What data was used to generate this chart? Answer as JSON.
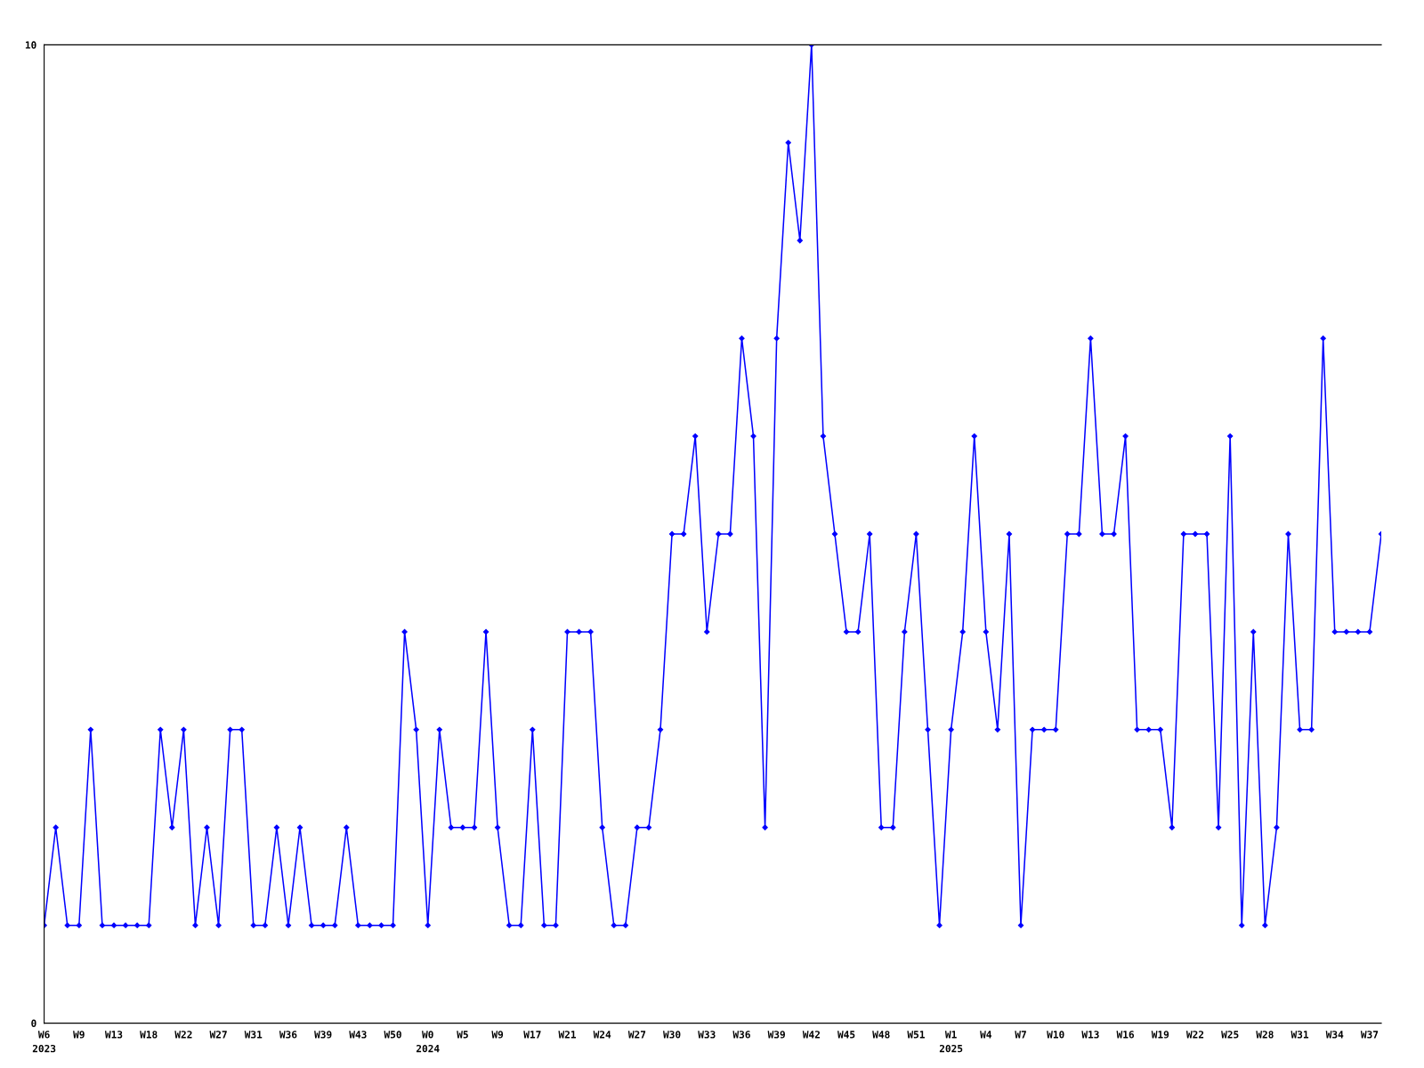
{
  "chart_data": {
    "type": "line",
    "categories": [
      "W6\n2023",
      null,
      null,
      "W9",
      null,
      null,
      "W13",
      null,
      null,
      "W18",
      null,
      null,
      "W22",
      null,
      null,
      "W27",
      null,
      null,
      "W31",
      null,
      null,
      "W36",
      null,
      null,
      "W39",
      null,
      null,
      "W43",
      null,
      null,
      "W50",
      null,
      null,
      "W0\n2024",
      null,
      null,
      "W5",
      null,
      null,
      "W9",
      null,
      null,
      "W17",
      null,
      null,
      "W21",
      null,
      null,
      "W24",
      null,
      null,
      "W27",
      null,
      null,
      "W30",
      null,
      null,
      "W33",
      null,
      null,
      "W36",
      null,
      null,
      "W39",
      null,
      null,
      "W42",
      null,
      null,
      "W45",
      null,
      null,
      "W48",
      null,
      null,
      "W51",
      null,
      null,
      "W1\n2025",
      null,
      null,
      "W4",
      null,
      null,
      "W7",
      null,
      null,
      "W10",
      null,
      null,
      "W13",
      null,
      null,
      "W16",
      null,
      null,
      "W19",
      null,
      null,
      "W22",
      null,
      null,
      "W25",
      null,
      null,
      "W28",
      null,
      null,
      "W31",
      null,
      null,
      "W34",
      null,
      null,
      "W37",
      null
    ],
    "values": [
      1,
      2,
      1,
      1,
      3,
      1,
      1,
      1,
      1,
      1,
      3,
      2,
      3,
      1,
      2,
      1,
      3,
      3,
      1,
      1,
      2,
      1,
      2,
      1,
      1,
      1,
      2,
      1,
      1,
      1,
      1,
      4,
      3,
      1,
      3,
      2,
      2,
      2,
      4,
      2,
      1,
      1,
      3,
      1,
      1,
      4,
      4,
      4,
      2,
      1,
      1,
      2,
      2,
      3,
      5,
      5,
      6,
      4,
      5,
      5,
      7,
      6,
      2,
      7,
      9,
      8,
      10,
      6,
      5,
      4,
      4,
      5,
      2,
      2,
      4,
      5,
      3,
      1,
      3,
      4,
      6,
      4,
      3,
      5,
      1,
      3,
      3,
      3,
      5,
      5,
      7,
      5,
      5,
      6,
      3,
      3,
      3,
      2,
      5,
      5,
      5,
      2,
      6,
      1,
      4,
      1,
      2,
      5,
      3,
      3,
      7,
      4,
      4,
      4,
      4,
      5
    ],
    "color": "#0000ff",
    "ylim": [
      0,
      10
    ],
    "yticks": [
      0,
      10
    ],
    "grid": false,
    "legend": false,
    "marker": "diamond",
    "line_style": "solid"
  }
}
